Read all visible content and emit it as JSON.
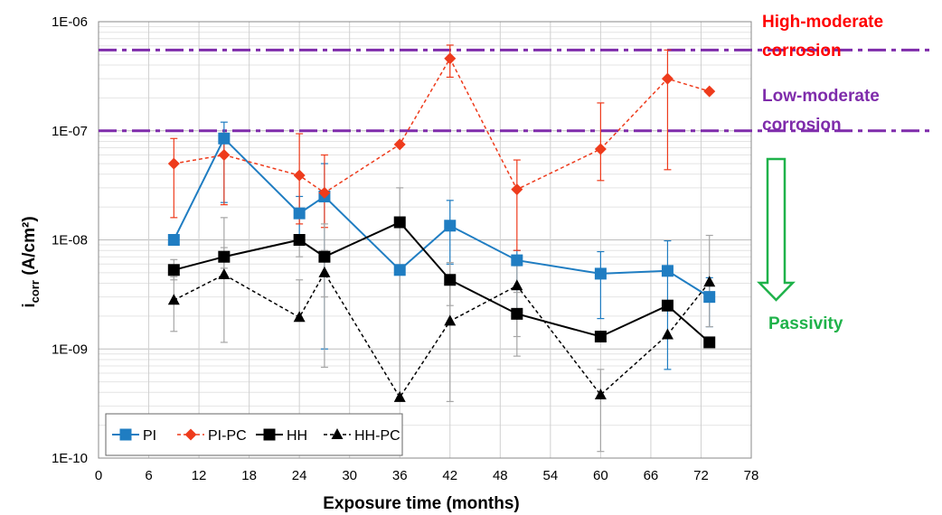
{
  "chart_data": {
    "type": "line",
    "xlabel": "Exposure time (months)",
    "ylabel": {
      "main": "i",
      "sub": "corr",
      "unit": " (A/cm²)"
    },
    "xlim": [
      0,
      78
    ],
    "xticks": [
      0,
      6,
      12,
      18,
      24,
      30,
      36,
      42,
      48,
      54,
      60,
      66,
      72,
      78
    ],
    "y_scale": "log",
    "ylim": [
      1e-10,
      1e-06
    ],
    "yticks": [
      {
        "value": 1e-10,
        "label": "1E-10"
      },
      {
        "value": 1e-09,
        "label": "1E-09"
      },
      {
        "value": 1e-08,
        "label": "1E-08"
      },
      {
        "value": 1e-07,
        "label": "1E-07"
      },
      {
        "value": 1e-06,
        "label": "1E-06"
      }
    ],
    "grid": true,
    "legend_position": "bottom-left",
    "series": [
      {
        "name": "PI",
        "color": "#1f7dc2",
        "dashed": false,
        "marker": "square",
        "points": [
          {
            "x": 9,
            "y": 1e-08,
            "err": [
              1e-08,
              1e-08
            ]
          },
          {
            "x": 15,
            "y": 8.5e-08,
            "err": [
              2.2e-08,
              1.2e-07
            ]
          },
          {
            "x": 24,
            "y": 1.75e-08,
            "err": [
              9e-09,
              2.5e-08
            ]
          },
          {
            "x": 27,
            "y": 2.5e-08,
            "err": [
              1e-09,
              5e-08
            ]
          },
          {
            "x": 36,
            "y": 5.3e-09,
            "err": [
              5.3e-09,
              5.3e-09
            ]
          },
          {
            "x": 42,
            "y": 1.35e-08,
            "err": [
              6e-09,
              2.3e-08
            ]
          },
          {
            "x": 50,
            "y": 6.5e-09,
            "err": [
              2e-09,
              8e-09
            ]
          },
          {
            "x": 60,
            "y": 4.9e-09,
            "err": [
              1.9e-09,
              7.8e-09
            ]
          },
          {
            "x": 68,
            "y": 5.2e-09,
            "err": [
              6.5e-10,
              9.8e-09
            ]
          },
          {
            "x": 73,
            "y": 3e-09,
            "err": [
              1.6e-09,
              4.5e-09
            ]
          }
        ]
      },
      {
        "name": "PI-PC",
        "color": "#ee3b1c",
        "dashed": true,
        "marker": "diamond",
        "points": [
          {
            "x": 9,
            "y": 5e-08,
            "err": [
              1.6e-08,
              8.5e-08
            ]
          },
          {
            "x": 15,
            "y": 6e-08,
            "err": [
              2.1e-08,
              9.5e-08
            ]
          },
          {
            "x": 24,
            "y": 3.9e-08,
            "err": [
              1.4e-08,
              9.4e-08
            ]
          },
          {
            "x": 27,
            "y": 2.7e-08,
            "err": [
              1.3e-08,
              6e-08
            ]
          },
          {
            "x": 36,
            "y": 7.5e-08,
            "err": [
              7.5e-08,
              7.5e-08
            ]
          },
          {
            "x": 42,
            "y": 4.6e-07,
            "err": [
              3.1e-07,
              6.1e-07
            ]
          },
          {
            "x": 50,
            "y": 2.9e-08,
            "err": [
              8e-09,
              5.4e-08
            ]
          },
          {
            "x": 60,
            "y": 6.8e-08,
            "err": [
              3.5e-08,
              1.8e-07
            ]
          },
          {
            "x": 68,
            "y": 3e-07,
            "err": [
              4.4e-08,
              5.5e-07
            ]
          },
          {
            "x": 73,
            "y": 2.3e-07,
            "err": [
              2.3e-07,
              2.3e-07
            ]
          }
        ]
      },
      {
        "name": "HH",
        "color": "#000000",
        "dashed": false,
        "marker": "square",
        "points": [
          {
            "x": 9,
            "y": 5.3e-09,
            "err": [
              4.3e-09,
              6.6e-09
            ]
          },
          {
            "x": 15,
            "y": 7e-09,
            "err": [
              5.5e-09,
              8.5e-09
            ]
          },
          {
            "x": 24,
            "y": 1e-08,
            "err": [
              7e-09,
              1.1e-08
            ]
          },
          {
            "x": 27,
            "y": 7e-09,
            "err": [
              3e-09,
              1.4e-08
            ]
          },
          {
            "x": 36,
            "y": 1.45e-08,
            "err": [
              1.45e-08,
              1.45e-08
            ]
          },
          {
            "x": 42,
            "y": 4.3e-09,
            "err": [
              2.5e-09,
              6.2e-09
            ]
          },
          {
            "x": 50,
            "y": 2.1e-09,
            "err": [
              1.3e-09,
              3.3e-09
            ]
          },
          {
            "x": 60,
            "y": 1.3e-09,
            "err": [
              1.3e-09,
              1.3e-09
            ]
          },
          {
            "x": 68,
            "y": 2.5e-09,
            "err": [
              2.5e-09,
              2.5e-09
            ]
          },
          {
            "x": 73,
            "y": 1.15e-09,
            "err": [
              1.15e-09,
              1.15e-09
            ]
          }
        ]
      },
      {
        "name": "HH-PC",
        "color": "#000000",
        "dashed": true,
        "marker": "triangle",
        "points": [
          {
            "x": 9,
            "y": 2.8e-09,
            "err": [
              1.45e-09,
              4.6e-09
            ]
          },
          {
            "x": 15,
            "y": 4.8e-09,
            "err": [
              1.15e-09,
              1.6e-08
            ]
          },
          {
            "x": 24,
            "y": 1.95e-09,
            "err": [
              1.95e-09,
              4.3e-09
            ]
          },
          {
            "x": 27,
            "y": 5e-09,
            "err": [
              6.8e-10,
              8e-09
            ]
          },
          {
            "x": 36,
            "y": 3.6e-10,
            "err": [
              3.6e-10,
              3e-08
            ]
          },
          {
            "x": 42,
            "y": 1.8e-09,
            "err": [
              3.3e-10,
              4e-09
            ]
          },
          {
            "x": 50,
            "y": 3.8e-09,
            "err": [
              8.6e-10,
              5.8e-09
            ]
          },
          {
            "x": 60,
            "y": 3.8e-10,
            "err": [
              1.15e-10,
              6.5e-10
            ]
          },
          {
            "x": 68,
            "y": 1.35e-09,
            "err": [
              1.35e-09,
              1.35e-09
            ]
          },
          {
            "x": 73,
            "y": 4.1e-09,
            "err": [
              1.6e-09,
              1.1e-08
            ]
          }
        ]
      }
    ],
    "threshold_lines": [
      {
        "y": 5.5e-07,
        "color": "#7f2cab"
      },
      {
        "y": 1e-07,
        "color": "#7f2cab"
      }
    ],
    "error_bar_color": "#a6a6a6",
    "annotations": [
      {
        "lines": [
          "High-moderate",
          "corrosion"
        ],
        "color": "#ff0000"
      },
      {
        "lines": [
          "Low-moderate",
          "corrosion"
        ],
        "color": "#7f2cab"
      },
      {
        "lines": [
          "Passivity"
        ],
        "color": "#1fb24a"
      }
    ]
  }
}
